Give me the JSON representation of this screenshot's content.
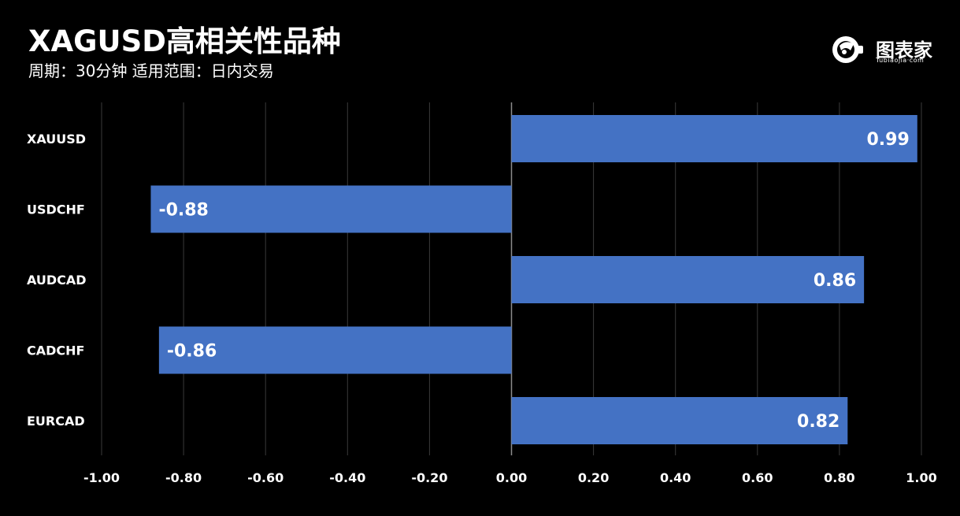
{
  "header": {
    "title": "XAGUSD高相关性品种",
    "subtitle": "周期：30分钟  适用范围：日内交易"
  },
  "logo": {
    "icon": "tubiaojia-logo-icon",
    "name": "图表家",
    "url_text": "Tubiaojia·com"
  },
  "chart_data": {
    "type": "bar",
    "orientation": "horizontal",
    "categories": [
      "XAUUSD",
      "USDCHF",
      "AUDCAD",
      "CADCHF",
      "EURCAD"
    ],
    "values": [
      0.99,
      -0.88,
      0.86,
      -0.86,
      0.82
    ],
    "data_labels": [
      "0.99",
      "-0.88",
      "0.86",
      "-0.86",
      "0.82"
    ],
    "x_ticks": [
      "-1.00",
      "-0.80",
      "-0.60",
      "-0.40",
      "-0.20",
      "0.00",
      "0.20",
      "0.40",
      "0.60",
      "0.80",
      "1.00"
    ],
    "xlim": [
      -1,
      1
    ],
    "grid": true,
    "bar_color": "#4472C4",
    "background": "#000000"
  }
}
